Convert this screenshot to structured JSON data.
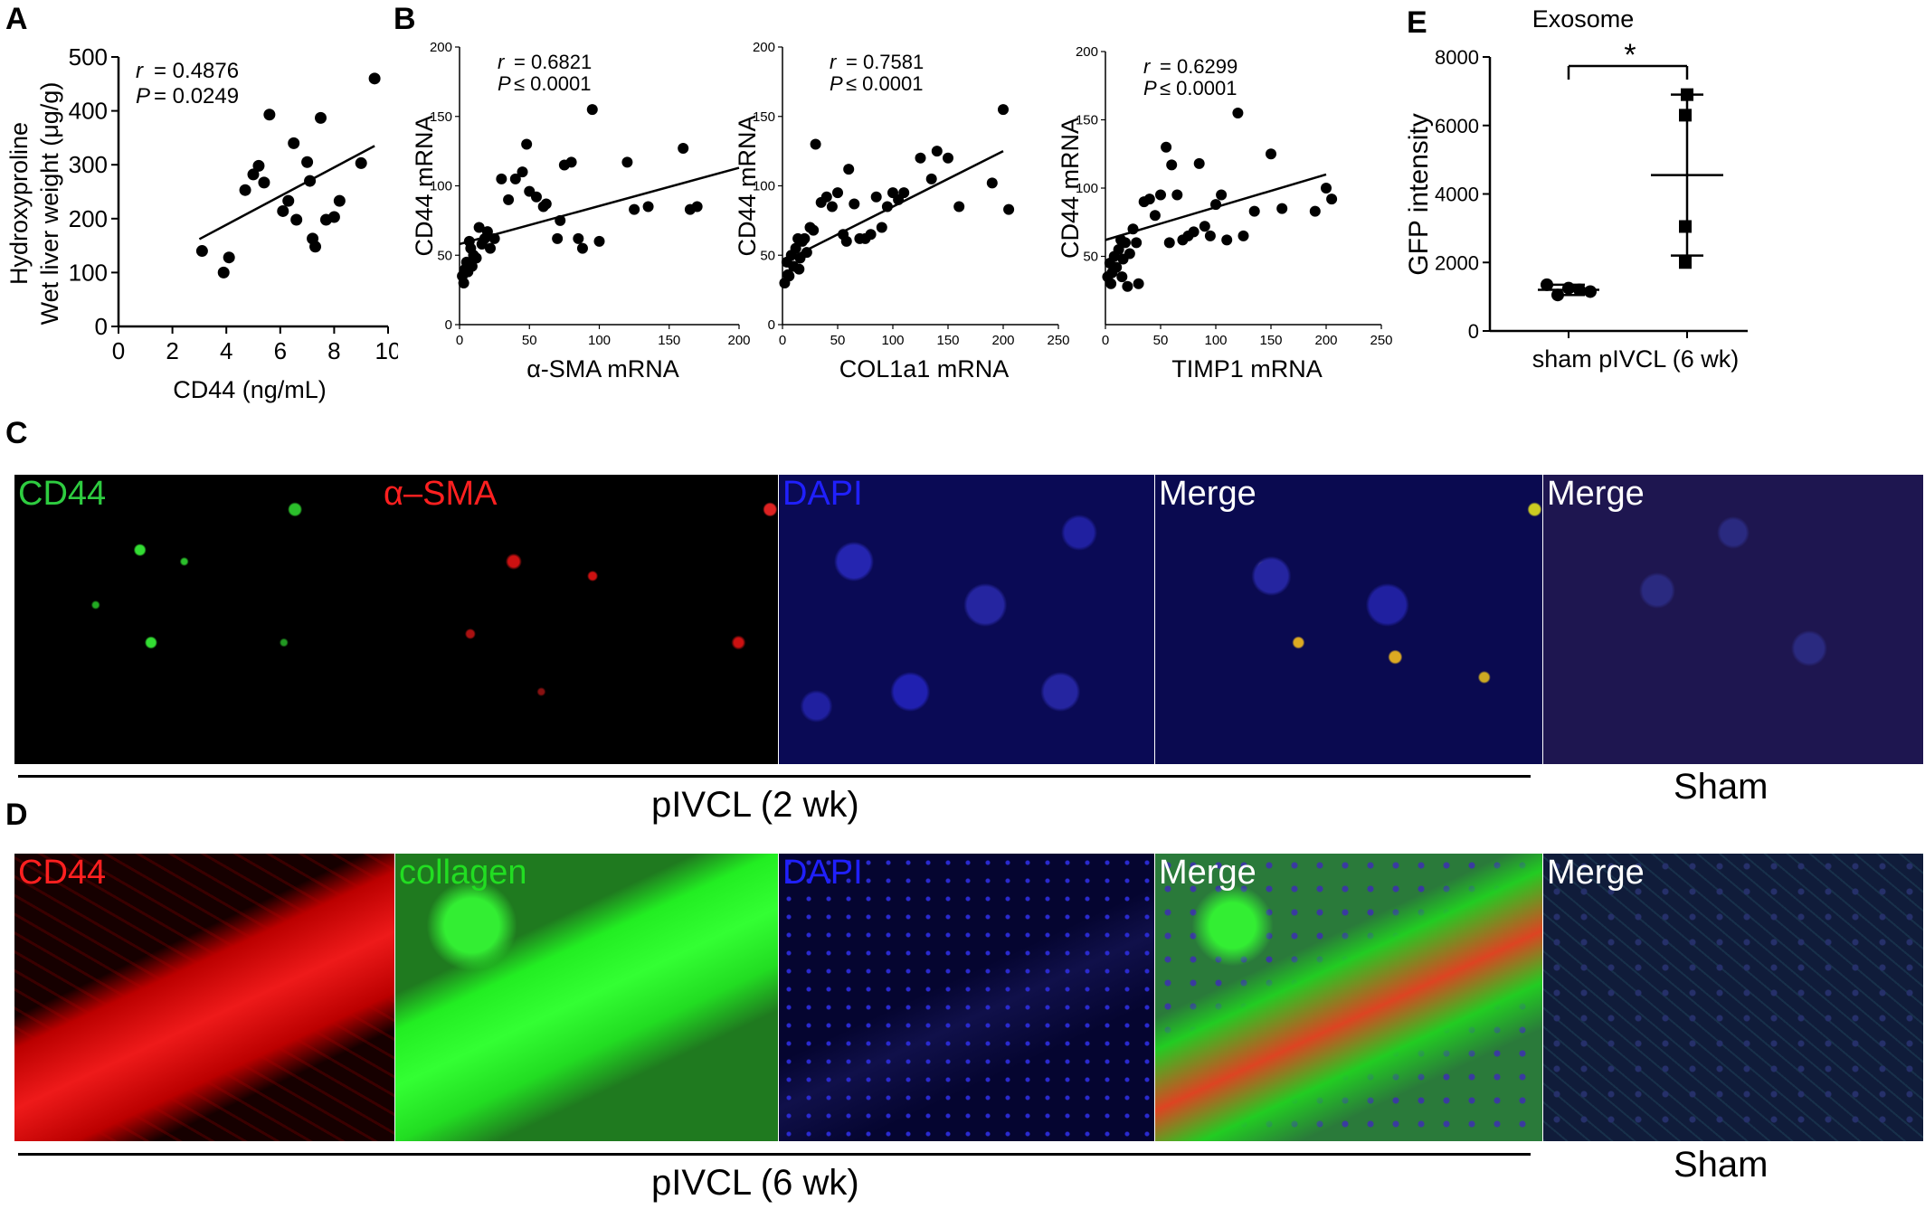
{
  "panels": {
    "A": {
      "label": "A",
      "ylabel_line1": "Hydroxyproline",
      "ylabel_line2": "Wet liver weight (μg/g)",
      "xlabel": "CD44 (ng/mL)",
      "r_label": "r",
      "r_value": "=  0.4876",
      "p_label": "P",
      "p_value": "= 0.0249",
      "xticks": [
        "0",
        "2",
        "4",
        "6",
        "8",
        "10"
      ],
      "yticks": [
        "0",
        "100",
        "200",
        "300",
        "400",
        "500"
      ]
    },
    "B": {
      "label": "B",
      "plots": [
        {
          "xlabel": "α-SMA mRNA",
          "ylabel": "CD44 mRNA",
          "r_value": "=  0.6821",
          "p_value": "≤ 0.0001",
          "xticks": [
            "0",
            "50",
            "100",
            "150",
            "200"
          ],
          "yticks": [
            "0",
            "50",
            "100",
            "150",
            "200"
          ]
        },
        {
          "xlabel": "COL1a1 mRNA",
          "ylabel": "CD44 mRNA",
          "r_value": "=  0.7581",
          "p_value": "≤ 0.0001",
          "xticks": [
            "0",
            "50",
            "100",
            "150",
            "200",
            "250"
          ],
          "yticks": [
            "0",
            "50",
            "100",
            "150",
            "200"
          ]
        },
        {
          "xlabel": "TIMP1 mRNA",
          "ylabel": "CD44 mRNA",
          "r_value": "=  0.6299",
          "p_value": "≤ 0.0001",
          "xticks": [
            "0",
            "50",
            "100",
            "150",
            "200",
            "250"
          ],
          "yticks": [
            "50",
            "100",
            "150",
            "200"
          ]
        }
      ],
      "r_label": "r",
      "p_label": "P"
    },
    "E": {
      "label": "E",
      "title": "Exosome",
      "ylabel": "GFP intensity",
      "xlabel": "sham pIVCL (6 wk)",
      "sig": "*",
      "yticks": [
        "0",
        "2000",
        "4000",
        "6000",
        "8000"
      ]
    },
    "C": {
      "label": "C",
      "images": [
        {
          "label": "CD44",
          "color": "#2ecc40"
        },
        {
          "label": "α–SMA",
          "color": "#ff2020"
        },
        {
          "label": "DAPI",
          "color": "#2020ff"
        },
        {
          "label": "Merge",
          "color": "#ffffff"
        },
        {
          "label": "Merge",
          "color": "#ffffff"
        }
      ],
      "group_label": "pIVCL (2 wk)",
      "sham_label": "Sham"
    },
    "D": {
      "label": "D",
      "images": [
        {
          "label": "CD44",
          "color": "#ff2020"
        },
        {
          "label": "collagen",
          "color": "#22dd22"
        },
        {
          "label": "DAPI",
          "color": "#2020ff"
        },
        {
          "label": "Merge",
          "color": "#ffffff"
        },
        {
          "label": "Merge",
          "color": "#ffffff"
        }
      ],
      "group_label": "pIVCL (6 wk)",
      "sham_label": "Sham"
    }
  },
  "chart_data": [
    {
      "type": "scatter",
      "panel": "A",
      "xlim": [
        0,
        10
      ],
      "ylim": [
        0,
        500
      ],
      "x": [
        3.1,
        3.9,
        4.1,
        4.7,
        5.0,
        5.2,
        5.4,
        5.6,
        6.1,
        6.3,
        6.5,
        6.6,
        7.0,
        7.1,
        7.2,
        7.3,
        7.5,
        7.7,
        8.0,
        8.2,
        9.0,
        9.5
      ],
      "y": [
        140,
        100,
        128,
        253,
        282,
        298,
        267,
        393,
        214,
        233,
        340,
        198,
        305,
        270,
        163,
        148,
        387,
        198,
        203,
        233,
        303,
        460
      ],
      "fit": {
        "x": [
          3,
          9.5
        ],
        "y": [
          162,
          335
        ]
      }
    },
    {
      "type": "scatter",
      "panel": "B1",
      "xlim": [
        0,
        200
      ],
      "ylim": [
        0,
        200
      ],
      "x": [
        2,
        3,
        4,
        5,
        6,
        7,
        8,
        9,
        10,
        12,
        14,
        16,
        18,
        20,
        22,
        25,
        30,
        35,
        40,
        45,
        48,
        50,
        55,
        60,
        62,
        70,
        72,
        75,
        80,
        85,
        88,
        95,
        100,
        120,
        125,
        135,
        160,
        165,
        170
      ],
      "y": [
        35,
        30,
        40,
        45,
        38,
        60,
        55,
        42,
        50,
        48,
        70,
        58,
        62,
        67,
        55,
        62,
        105,
        90,
        105,
        110,
        130,
        96,
        92,
        85,
        87,
        62,
        75,
        115,
        117,
        62,
        55,
        155,
        60,
        117,
        83,
        85,
        127,
        83,
        85
      ],
      "fit": {
        "x": [
          0,
          200
        ],
        "y": [
          58,
          113
        ]
      }
    },
    {
      "type": "scatter",
      "panel": "B2",
      "xlim": [
        0,
        250
      ],
      "ylim": [
        0,
        200
      ],
      "x": [
        2,
        4,
        5,
        6,
        8,
        10,
        12,
        14,
        15,
        16,
        18,
        20,
        22,
        25,
        28,
        30,
        35,
        40,
        45,
        50,
        55,
        58,
        60,
        65,
        70,
        75,
        80,
        85,
        90,
        95,
        100,
        105,
        110,
        125,
        135,
        140,
        150,
        160,
        190,
        200,
        205
      ],
      "y": [
        30,
        45,
        36,
        35,
        50,
        42,
        55,
        62,
        40,
        48,
        60,
        62,
        52,
        70,
        68,
        130,
        88,
        92,
        85,
        95,
        65,
        60,
        112,
        87,
        62,
        62,
        65,
        92,
        70,
        85,
        95,
        90,
        95,
        120,
        105,
        125,
        120,
        85,
        102,
        155,
        83
      ],
      "fit": {
        "x": [
          0,
          200
        ],
        "y": [
          45,
          125
        ]
      }
    },
    {
      "type": "scatter",
      "panel": "B3",
      "xlim": [
        0,
        250
      ],
      "ylim": [
        0,
        200
      ],
      "x": [
        2,
        4,
        5,
        6,
        8,
        10,
        12,
        14,
        15,
        16,
        18,
        20,
        22,
        25,
        28,
        30,
        35,
        40,
        45,
        50,
        55,
        58,
        60,
        65,
        70,
        75,
        80,
        85,
        90,
        95,
        100,
        105,
        110,
        120,
        125,
        135,
        150,
        160,
        190,
        200,
        205
      ],
      "y": [
        35,
        45,
        30,
        38,
        50,
        42,
        55,
        62,
        35,
        48,
        60,
        28,
        52,
        70,
        60,
        30,
        90,
        92,
        80,
        95,
        130,
        60,
        117,
        95,
        62,
        65,
        68,
        118,
        72,
        65,
        88,
        95,
        62,
        155,
        65,
        83,
        125,
        85,
        83,
        100,
        92
      ],
      "fit": {
        "x": [
          0,
          200
        ],
        "y": [
          62,
          110
        ]
      }
    },
    {
      "type": "scatter",
      "panel": "E",
      "categories": [
        "sham",
        "pIVCL (6 wk)"
      ],
      "ylim": [
        0,
        8000
      ],
      "series": [
        {
          "category": "sham",
          "values": [
            1350,
            1050,
            1250,
            1200,
            1150
          ],
          "mean": 1200,
          "sd": 150
        },
        {
          "category": "pIVCL (6 wk)",
          "values": [
            6900,
            6300,
            3050,
            2000
          ],
          "mean": 4550,
          "sd": 2350
        }
      ]
    }
  ]
}
